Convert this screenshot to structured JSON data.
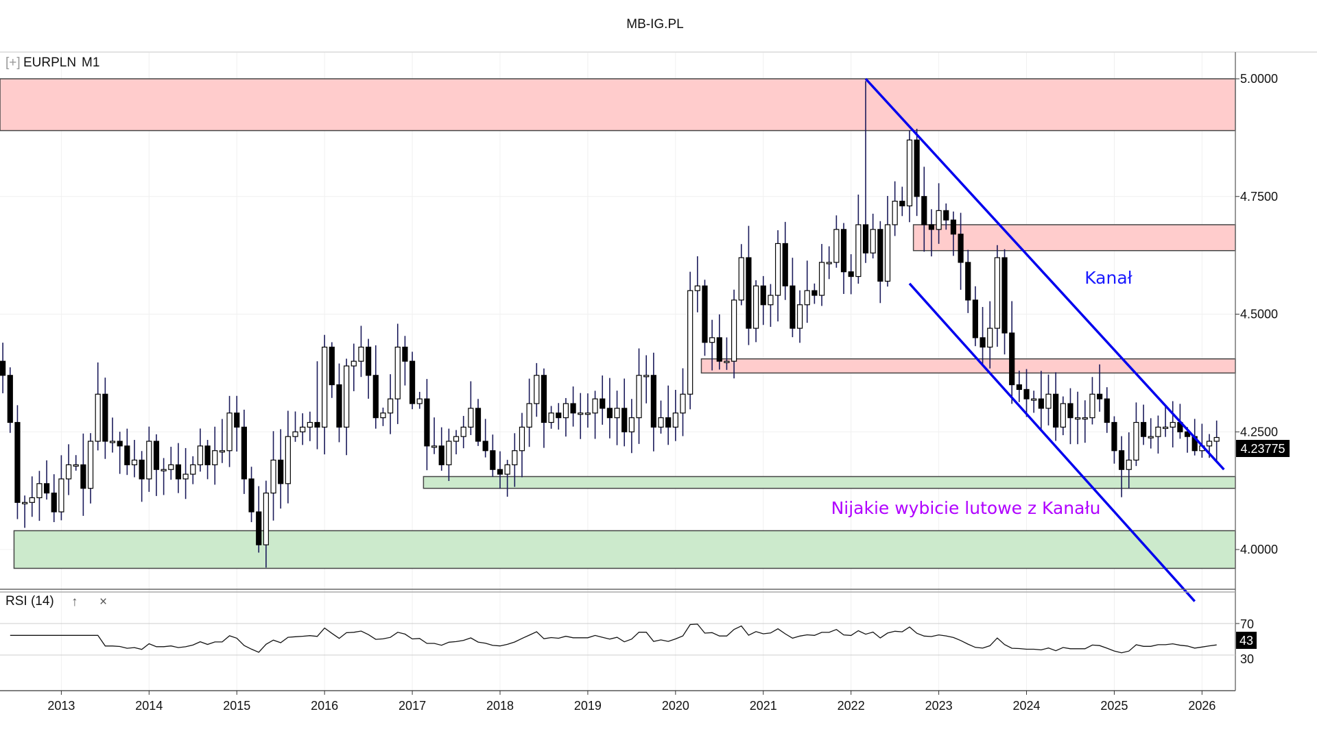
{
  "title": "MB-IG.PL",
  "instrument": {
    "expand_icon": "[+]",
    "symbol": "EURPLN",
    "timeframe": "M1"
  },
  "annotations": {
    "channel_label": "Kanał",
    "channel_label_color": "#1a1aff",
    "breakout_label": "Nijakie wybicie lutowe z Kanału",
    "breakout_label_color": "#b000ff",
    "line_color": "#0000ee",
    "resistance_color": "#ffcccc",
    "support_color": "#cceacc",
    "zones": [
      {
        "type": "resistance",
        "from": 4.89,
        "to": 5.0,
        "start": "2012-05"
      },
      {
        "type": "resistance",
        "from": 4.635,
        "to": 4.69,
        "start": "2022-10"
      },
      {
        "type": "resistance",
        "from": 4.375,
        "to": 4.405,
        "start": "2020-05"
      },
      {
        "type": "support",
        "from": 4.13,
        "to": 4.155,
        "start": "2017-03"
      },
      {
        "type": "support",
        "from": 3.96,
        "to": 4.04,
        "start": "2012-07"
      }
    ],
    "channel_upper": [
      {
        "date": "2022-03",
        "price": 5.0
      },
      {
        "date": "2026-04",
        "price": 4.17
      }
    ],
    "channel_lower": [
      {
        "date": "2022-09",
        "price": 4.565
      },
      {
        "date": "2025-12",
        "price": 3.89
      }
    ]
  },
  "price_label": "4.23775",
  "rsi": {
    "title": "RSI (14)",
    "up_icon": "↑",
    "close_icon": "×",
    "levels": [
      "70",
      "30"
    ],
    "current_label": "43"
  },
  "chart_data": {
    "type": "candlestick",
    "title": "EURPLN M1",
    "start": "2012-05",
    "interval": "month",
    "ylim": [
      3.87,
      5.03
    ],
    "y_ticks": [
      "5.0000",
      "4.7500",
      "4.5000",
      "4.2500",
      "4.0000"
    ],
    "y_tick_values": [
      5.0,
      4.75,
      4.5,
      4.25,
      4.0
    ],
    "x_ticks": [
      "2013",
      "2014",
      "2015",
      "2016",
      "2017",
      "2018",
      "2019",
      "2020",
      "2021",
      "2022",
      "2023",
      "2024",
      "2025",
      "2026"
    ],
    "grid": true,
    "close": [
      4.37,
      4.27,
      4.1,
      4.1,
      4.11,
      4.14,
      4.12,
      4.08,
      4.15,
      4.18,
      4.18,
      4.13,
      4.23,
      4.33,
      4.23,
      4.23,
      4.22,
      4.18,
      4.19,
      4.15,
      4.23,
      4.17,
      4.17,
      4.18,
      4.15,
      4.16,
      4.18,
      4.22,
      4.18,
      4.21,
      4.21,
      4.29,
      4.26,
      4.15,
      4.08,
      4.01,
      4.12,
      4.19,
      4.14,
      4.24,
      4.25,
      4.26,
      4.27,
      4.26,
      4.43,
      4.35,
      4.26,
      4.39,
      4.4,
      4.43,
      4.37,
      4.28,
      4.29,
      4.32,
      4.43,
      4.4,
      4.31,
      4.32,
      4.22,
      4.22,
      4.18,
      4.23,
      4.24,
      4.26,
      4.3,
      4.23,
      4.21,
      4.17,
      4.16,
      4.18,
      4.21,
      4.26,
      4.31,
      4.37,
      4.27,
      4.29,
      4.28,
      4.31,
      4.29,
      4.29,
      4.29,
      4.32,
      4.3,
      4.28,
      4.3,
      4.25,
      4.28,
      4.37,
      4.37,
      4.26,
      4.28,
      4.26,
      4.29,
      4.33,
      4.55,
      4.56,
      4.44,
      4.45,
      4.4,
      4.4,
      4.53,
      4.62,
      4.47,
      4.56,
      4.52,
      4.54,
      4.65,
      4.56,
      4.47,
      4.52,
      4.55,
      4.54,
      4.61,
      4.61,
      4.68,
      4.59,
      4.58,
      4.69,
      4.63,
      4.68,
      4.57,
      4.69,
      4.74,
      4.73,
      4.87,
      4.75,
      4.69,
      4.68,
      4.72,
      4.7,
      4.67,
      4.61,
      4.53,
      4.45,
      4.43,
      4.47,
      4.62,
      4.46,
      4.35,
      4.34,
      4.32,
      4.32,
      4.3,
      4.33,
      4.26,
      4.31,
      4.28,
      4.28,
      4.28,
      4.33,
      4.32,
      4.27,
      4.21,
      4.17,
      4.19,
      4.27,
      4.24,
      4.24,
      4.26,
      4.26,
      4.27,
      4.25,
      4.24,
      4.21,
      4.22,
      4.23,
      4.238
    ],
    "notable_highs": {
      "2022-03": 4.995,
      "2022-09": 4.89,
      "2015-12": 4.4
    }
  }
}
